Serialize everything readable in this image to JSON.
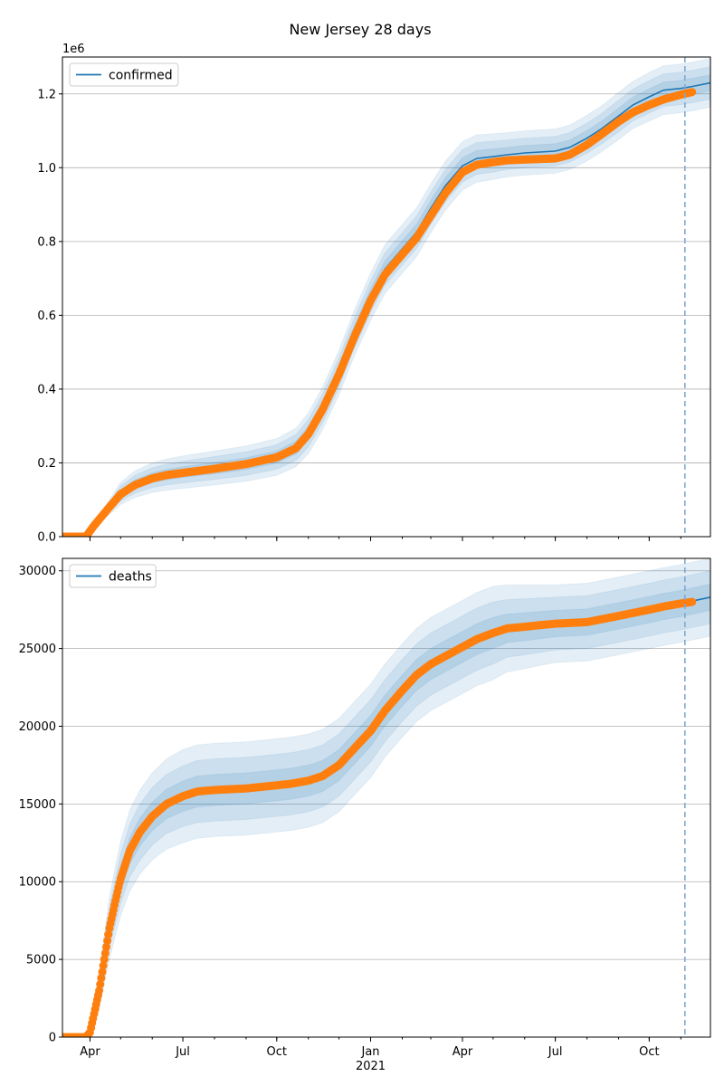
{
  "figure": {
    "title": "New Jersey 28 days"
  },
  "chart_data": [
    {
      "type": "line",
      "name": "confirmed-panel",
      "legend": {
        "label": "confirmed",
        "placement": "upper-left"
      },
      "x_axis": {
        "type": "date",
        "range": [
          "2020-03-05",
          "2021-11-30"
        ],
        "tick_labels": [
          {
            "date": "2020-04-01",
            "label": "Apr"
          },
          {
            "date": "2020-07-01",
            "label": "Jul"
          },
          {
            "date": "2020-10-01",
            "label": "Oct"
          },
          {
            "date": "2021-01-01",
            "label": "Jan"
          },
          {
            "date": "2021-04-01",
            "label": "Apr"
          },
          {
            "date": "2021-07-01",
            "label": "Jul"
          },
          {
            "date": "2021-10-01",
            "label": "Oct"
          }
        ],
        "tick_labels_visible": false
      },
      "y_axis": {
        "range": [
          0,
          1300000
        ],
        "offset_text": "1e6",
        "tick_labels": [
          {
            "value": 0,
            "label": "0.0"
          },
          {
            "value": 200000,
            "label": "0.2"
          },
          {
            "value": 400000,
            "label": "0.4"
          },
          {
            "value": 600000,
            "label": "0.6"
          },
          {
            "value": 800000,
            "label": "0.8"
          },
          {
            "value": 1000000,
            "label": "1.0"
          },
          {
            "value": 1200000,
            "label": "1.2"
          }
        ]
      },
      "grid": "y",
      "cutoff_date": "2021-11-05",
      "observed": {
        "x": [
          "2020-03-05",
          "2020-03-28",
          "2020-04-05",
          "2020-04-20",
          "2020-05-01",
          "2020-05-15",
          "2020-06-01",
          "2020-06-15",
          "2020-07-01",
          "2020-08-01",
          "2020-09-01",
          "2020-10-01",
          "2020-10-20",
          "2020-11-01",
          "2020-11-15",
          "2020-12-01",
          "2020-12-15",
          "2021-01-01",
          "2021-01-15",
          "2021-02-01",
          "2021-02-15",
          "2021-03-01",
          "2021-03-15",
          "2021-04-01",
          "2021-04-15",
          "2021-05-01",
          "2021-05-15",
          "2021-06-01",
          "2021-07-01",
          "2021-07-15",
          "2021-08-01",
          "2021-08-15",
          "2021-09-01",
          "2021-09-15",
          "2021-10-01",
          "2021-10-15",
          "2021-11-01",
          "2021-11-12"
        ],
        "y": [
          0,
          0,
          30000,
          80000,
          115000,
          140000,
          158000,
          167000,
          173000,
          184000,
          197000,
          215000,
          240000,
          278000,
          345000,
          440000,
          535000,
          640000,
          710000,
          765000,
          810000,
          870000,
          930000,
          988000,
          1008000,
          1015000,
          1020000,
          1022000,
          1025000,
          1035000,
          1062000,
          1090000,
          1125000,
          1150000,
          1170000,
          1185000,
          1198000,
          1205000
        ]
      },
      "forecast": {
        "x": [
          "2020-03-05",
          "2020-03-28",
          "2020-04-05",
          "2020-04-20",
          "2020-05-01",
          "2020-05-15",
          "2020-06-01",
          "2020-06-15",
          "2020-07-01",
          "2020-08-01",
          "2020-09-01",
          "2020-10-01",
          "2020-10-20",
          "2020-11-01",
          "2020-11-15",
          "2020-12-01",
          "2020-12-15",
          "2021-01-01",
          "2021-01-15",
          "2021-02-01",
          "2021-02-15",
          "2021-03-01",
          "2021-03-15",
          "2021-04-01",
          "2021-04-15",
          "2021-05-01",
          "2021-05-15",
          "2021-06-01",
          "2021-07-01",
          "2021-07-15",
          "2021-08-01",
          "2021-08-15",
          "2021-09-01",
          "2021-09-15",
          "2021-10-01",
          "2021-10-15",
          "2021-11-01",
          "2021-11-12",
          "2021-11-30"
        ],
        "y": [
          0,
          0,
          30000,
          80000,
          117000,
          142000,
          160000,
          168000,
          175000,
          186000,
          198000,
          216000,
          242000,
          280000,
          348000,
          445000,
          545000,
          650000,
          725000,
          780000,
          825000,
          890000,
          950000,
          1005000,
          1025000,
          1030000,
          1035000,
          1040000,
          1045000,
          1055000,
          1080000,
          1105000,
          1140000,
          1170000,
          1192000,
          1210000,
          1215000,
          1220000,
          1230000
        ],
        "band_outer": [
          0,
          0,
          8000,
          20000,
          30000,
          36000,
          40000,
          42000,
          44000,
          46000,
          48000,
          50000,
          52000,
          55000,
          58000,
          60000,
          62000,
          64000,
          66000,
          66000,
          66000,
          66000,
          66000,
          66000,
          64000,
          62000,
          60000,
          60000,
          60000,
          60000,
          62000,
          62000,
          64000,
          64000,
          66000,
          66000,
          66000,
          66000,
          66000
        ],
        "band_mid": [
          0,
          0,
          5000,
          13000,
          20000,
          24000,
          27000,
          28000,
          29000,
          31000,
          32000,
          33000,
          35000,
          37000,
          39000,
          40000,
          41000,
          43000,
          44000,
          44000,
          44000,
          44000,
          44000,
          44000,
          43000,
          42000,
          40000,
          40000,
          40000,
          40000,
          41000,
          41000,
          43000,
          43000,
          44000,
          44000,
          44000,
          44000,
          44000
        ],
        "band_inner": [
          0,
          0,
          2500,
          6500,
          10000,
          12000,
          13500,
          14000,
          14500,
          15500,
          16000,
          16500,
          17500,
          18500,
          19500,
          20000,
          20500,
          21500,
          22000,
          22000,
          22000,
          22000,
          22000,
          22000,
          21500,
          21000,
          20000,
          20000,
          20000,
          20000,
          20500,
          20500,
          21500,
          21500,
          22000,
          22000,
          22000,
          22000,
          22000
        ]
      }
    },
    {
      "type": "line",
      "name": "deaths-panel",
      "legend": {
        "label": "deaths",
        "placement": "upper-left"
      },
      "x_axis": {
        "type": "date",
        "range": [
          "2020-03-05",
          "2021-11-30"
        ],
        "tick_labels": [
          {
            "date": "2020-04-01",
            "label": "Apr"
          },
          {
            "date": "2020-07-01",
            "label": "Jul"
          },
          {
            "date": "2020-10-01",
            "label": "Oct"
          },
          {
            "date": "2021-01-01",
            "label": "Jan"
          },
          {
            "date": "2021-04-01",
            "label": "Apr"
          },
          {
            "date": "2021-07-01",
            "label": "Jul"
          },
          {
            "date": "2021-10-01",
            "label": "Oct"
          }
        ],
        "year_label": {
          "date": "2021-01-01",
          "label": "2021"
        },
        "tick_labels_visible": true
      },
      "y_axis": {
        "range": [
          0,
          30800
        ],
        "tick_labels": [
          {
            "value": 0,
            "label": "0"
          },
          {
            "value": 5000,
            "label": "5000"
          },
          {
            "value": 10000,
            "label": "10000"
          },
          {
            "value": 15000,
            "label": "15000"
          },
          {
            "value": 20000,
            "label": "20000"
          },
          {
            "value": 25000,
            "label": "25000"
          },
          {
            "value": 30000,
            "label": "30000"
          }
        ]
      },
      "grid": "y",
      "cutoff_date": "2021-11-05",
      "observed": {
        "x": [
          "2020-03-05",
          "2020-03-28",
          "2020-04-01",
          "2020-04-05",
          "2020-04-10",
          "2020-04-15",
          "2020-04-20",
          "2020-04-25",
          "2020-05-01",
          "2020-05-10",
          "2020-05-20",
          "2020-06-01",
          "2020-06-15",
          "2020-07-01",
          "2020-07-15",
          "2020-08-01",
          "2020-09-01",
          "2020-10-01",
          "2020-10-15",
          "2020-11-01",
          "2020-11-15",
          "2020-12-01",
          "2020-12-15",
          "2021-01-01",
          "2021-01-15",
          "2021-02-01",
          "2021-02-15",
          "2021-03-01",
          "2021-03-15",
          "2021-04-01",
          "2021-04-15",
          "2021-05-01",
          "2021-05-15",
          "2021-06-01",
          "2021-06-15",
          "2021-07-01",
          "2021-08-01",
          "2021-09-01",
          "2021-10-01",
          "2021-10-15",
          "2021-11-01",
          "2021-11-12"
        ],
        "y": [
          0,
          0,
          300,
          1500,
          3000,
          5000,
          7000,
          8500,
          10200,
          12000,
          13200,
          14200,
          15000,
          15500,
          15800,
          15900,
          16000,
          16200,
          16300,
          16500,
          16800,
          17500,
          18500,
          19700,
          21000,
          22300,
          23300,
          24000,
          24500,
          25100,
          25600,
          26000,
          26300,
          26400,
          26500,
          26600,
          26700,
          27100,
          27500,
          27700,
          27900,
          28000
        ]
      },
      "forecast": {
        "x": [
          "2020-03-05",
          "2020-03-28",
          "2020-04-01",
          "2020-04-05",
          "2020-04-10",
          "2020-04-15",
          "2020-04-20",
          "2020-04-25",
          "2020-05-01",
          "2020-05-10",
          "2020-05-20",
          "2020-06-01",
          "2020-06-15",
          "2020-07-01",
          "2020-07-15",
          "2020-08-01",
          "2020-09-01",
          "2020-10-01",
          "2020-10-15",
          "2020-11-01",
          "2020-11-15",
          "2020-12-01",
          "2020-12-15",
          "2021-01-01",
          "2021-01-15",
          "2021-02-01",
          "2021-02-15",
          "2021-03-01",
          "2021-03-15",
          "2021-04-01",
          "2021-04-15",
          "2021-05-01",
          "2021-05-15",
          "2021-06-01",
          "2021-06-15",
          "2021-07-01",
          "2021-08-01",
          "2021-09-01",
          "2021-10-01",
          "2021-10-15",
          "2021-11-01",
          "2021-11-12",
          "2021-11-30"
        ],
        "y": [
          0,
          0,
          300,
          1500,
          3000,
          5000,
          7000,
          8500,
          10200,
          12000,
          13200,
          14200,
          15000,
          15500,
          15800,
          15900,
          16000,
          16200,
          16300,
          16500,
          16800,
          17500,
          18500,
          19700,
          21000,
          22300,
          23300,
          24000,
          24500,
          25100,
          25600,
          26000,
          26300,
          26400,
          26500,
          26600,
          26700,
          27100,
          27500,
          27700,
          27900,
          28050,
          28300
        ],
        "band_outer": [
          0,
          0,
          400,
          800,
          1200,
          1600,
          2000,
          2200,
          2400,
          2600,
          2700,
          2800,
          2900,
          3000,
          3000,
          3000,
          3000,
          3000,
          3000,
          3000,
          3000,
          3000,
          3000,
          3000,
          3000,
          3000,
          3000,
          3000,
          3000,
          3000,
          3000,
          3000,
          2800,
          2700,
          2600,
          2500,
          2500,
          2500,
          2500,
          2500,
          2500,
          2500,
          2500
        ],
        "band_mid": [
          0,
          0,
          250,
          500,
          800,
          1050,
          1300,
          1450,
          1600,
          1700,
          1800,
          1850,
          1900,
          1950,
          2000,
          2000,
          2000,
          2000,
          2000,
          2000,
          2000,
          2000,
          2000,
          2000,
          2000,
          2000,
          2000,
          2000,
          2000,
          2000,
          2000,
          2000,
          1850,
          1800,
          1750,
          1700,
          1700,
          1700,
          1700,
          1700,
          1700,
          1700,
          1700
        ],
        "band_inner": [
          0,
          0,
          120,
          250,
          400,
          520,
          650,
          720,
          800,
          850,
          900,
          920,
          950,
          980,
          1000,
          1000,
          1000,
          1000,
          1000,
          1000,
          1000,
          1000,
          1000,
          1000,
          1000,
          1000,
          1000,
          1000,
          1000,
          1000,
          1000,
          1000,
          920,
          900,
          880,
          850,
          850,
          850,
          850,
          850,
          850,
          850,
          850
        ]
      }
    }
  ],
  "colors": {
    "forecast_line": "#1f77b4",
    "observed_points": "#ff7f0e",
    "band": "#1f77b4",
    "grid": "#b0b0b0",
    "cutoff_line": "#7fa8cf"
  }
}
